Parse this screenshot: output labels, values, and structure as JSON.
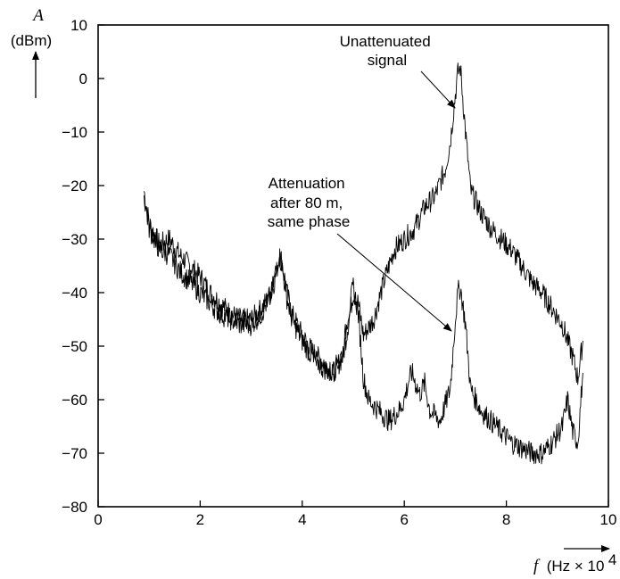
{
  "chart_data": {
    "type": "line",
    "xlabel": {
      "symbol": "f",
      "unit": "(Hz × 10",
      "exp": "4",
      "close": ")"
    },
    "ylabel": {
      "symbol": "A",
      "unit": "(dBm)"
    },
    "xlim": [
      0,
      10
    ],
    "ylim": [
      -80,
      10
    ],
    "xticks": [
      0,
      2,
      4,
      6,
      8,
      10
    ],
    "yticks": [
      10,
      0,
      -10,
      -20,
      -30,
      -40,
      -50,
      -60,
      -70,
      -80
    ],
    "ytick_labels": [
      "10",
      "0",
      "−10",
      "−20",
      "−30",
      "−40",
      "−50",
      "−60",
      "−70",
      "−80"
    ],
    "grid": false,
    "series": [
      {
        "x": [
          0.9,
          1.0,
          1.2,
          1.4,
          1.6,
          1.8,
          2.0,
          2.2,
          2.4,
          2.6,
          2.8,
          3.0,
          3.2,
          3.4,
          3.5,
          3.55,
          3.6,
          3.7,
          3.8,
          4.0,
          4.2,
          4.4,
          4.6,
          4.8,
          4.9,
          5.0,
          5.1,
          5.2,
          5.4,
          5.6,
          5.8,
          6.0,
          6.2,
          6.4,
          6.6,
          6.8,
          6.9,
          7.0,
          7.05,
          7.1,
          7.2,
          7.3,
          7.5,
          7.7,
          7.9,
          8.1,
          8.3,
          8.5,
          8.7,
          8.9,
          9.1,
          9.3,
          9.4,
          9.5
        ],
        "y": [
          -21,
          -27,
          -31,
          -30,
          -33,
          -35,
          -37,
          -40,
          -42,
          -44,
          -45,
          -45,
          -43,
          -40,
          -36,
          -33,
          -34,
          -40,
          -44,
          -48,
          -51,
          -53,
          -55,
          -52,
          -46,
          -40,
          -42,
          -48,
          -45,
          -38,
          -32,
          -30,
          -28,
          -24,
          -22,
          -17,
          -12,
          -3,
          1,
          2,
          -10,
          -21,
          -25,
          -28,
          -30,
          -32,
          -35,
          -38,
          -40,
          -43,
          -46,
          -52,
          -56,
          -49
        ]
      },
      {
        "x": [
          0.9,
          1.0,
          1.2,
          1.4,
          1.6,
          1.8,
          2.0,
          2.2,
          2.4,
          2.6,
          2.8,
          3.0,
          3.2,
          3.4,
          3.5,
          3.55,
          3.6,
          3.7,
          3.8,
          4.0,
          4.2,
          4.4,
          4.6,
          4.8,
          4.9,
          5.0,
          5.1,
          5.2,
          5.3,
          5.5,
          5.7,
          5.9,
          6.0,
          6.1,
          6.15,
          6.3,
          6.4,
          6.5,
          6.7,
          6.9,
          7.0,
          7.05,
          7.1,
          7.2,
          7.3,
          7.5,
          7.7,
          7.9,
          8.1,
          8.3,
          8.5,
          8.7,
          8.9,
          9.1,
          9.2,
          9.3,
          9.4,
          9.5
        ],
        "y": [
          -22,
          -28,
          -32,
          -33,
          -36,
          -38,
          -40,
          -42,
          -44,
          -45,
          -46,
          -46,
          -44,
          -40,
          -35,
          -33,
          -35,
          -41,
          -45,
          -49,
          -52,
          -54,
          -55,
          -51,
          -44,
          -39,
          -44,
          -56,
          -60,
          -62,
          -64,
          -62,
          -60,
          -56,
          -55,
          -59,
          -57,
          -62,
          -64,
          -58,
          -45,
          -40,
          -39,
          -46,
          -58,
          -62,
          -64,
          -66,
          -68,
          -69,
          -70,
          -70,
          -68,
          -65,
          -60,
          -66,
          -68,
          -55
        ]
      }
    ],
    "annotations": [
      {
        "lines": [
          "Unattenuated",
          "signal"
        ]
      },
      {
        "lines": [
          "Attenuation",
          "after 80 m,",
          "same phase"
        ]
      }
    ]
  }
}
